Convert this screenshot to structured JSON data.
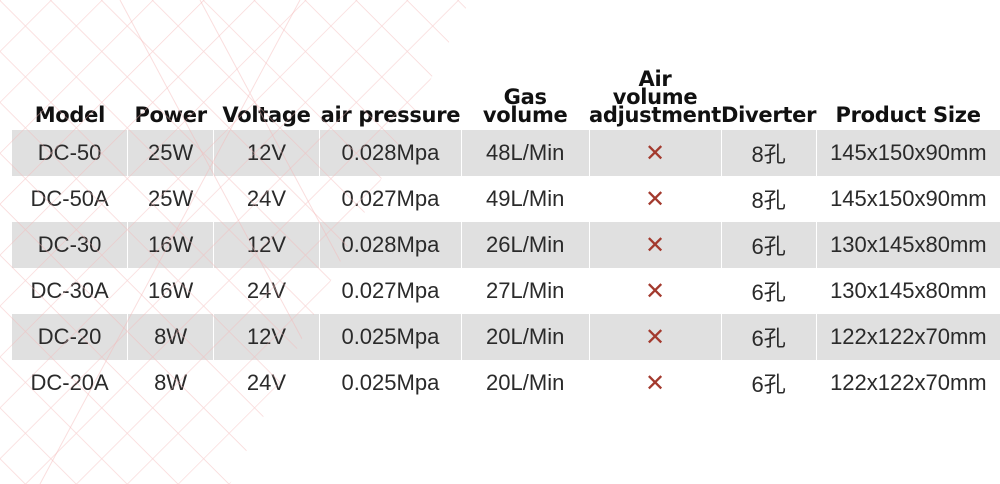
{
  "table": {
    "headers": {
      "model": "Model",
      "power": "Power",
      "voltage": "Voltage",
      "air_pressure": "air pressure",
      "gas_volume_1": "Gas",
      "gas_volume_2": "volume",
      "air_adj_1": "Air",
      "air_adj_2": "volume",
      "air_adj_3": "adjustment",
      "diverter": "Diverter",
      "product_size": "Product Size"
    },
    "rows": [
      {
        "model": "DC-50",
        "power": "25W",
        "voltage": "12V",
        "pressure": "0.028Mpa",
        "gas_volume": "48L/Min",
        "air_adjust": "✕",
        "diverter": "8孔",
        "size": "145x150x90mm"
      },
      {
        "model": "DC-50A",
        "power": "25W",
        "voltage": "24V",
        "pressure": "0.027Mpa",
        "gas_volume": "49L/Min",
        "air_adjust": "✕",
        "diverter": "8孔",
        "size": "145x150x90mm"
      },
      {
        "model": "DC-30",
        "power": "16W",
        "voltage": "12V",
        "pressure": "0.028Mpa",
        "gas_volume": "26L/Min",
        "air_adjust": "✕",
        "diverter": "6孔",
        "size": "130x145x80mm"
      },
      {
        "model": "DC-30A",
        "power": "16W",
        "voltage": "24V",
        "pressure": "0.027Mpa",
        "gas_volume": "27L/Min",
        "air_adjust": "✕",
        "diverter": "6孔",
        "size": "130x145x80mm"
      },
      {
        "model": "DC-20",
        "power": "8W",
        "voltage": "12V",
        "pressure": "0.025Mpa",
        "gas_volume": "20L/Min",
        "air_adjust": "✕",
        "diverter": "6孔",
        "size": "122x122x70mm"
      },
      {
        "model": "DC-20A",
        "power": "8W",
        "voltage": "24V",
        "pressure": "0.025Mpa",
        "gas_volume": "20L/Min",
        "air_adjust": "✕",
        "diverter": "6孔",
        "size": "122x122x70mm"
      }
    ]
  },
  "colors": {
    "row_shade": "#e0e0e0",
    "cross_mark": "#a33a2e",
    "watermark": "#f4b7b7"
  }
}
